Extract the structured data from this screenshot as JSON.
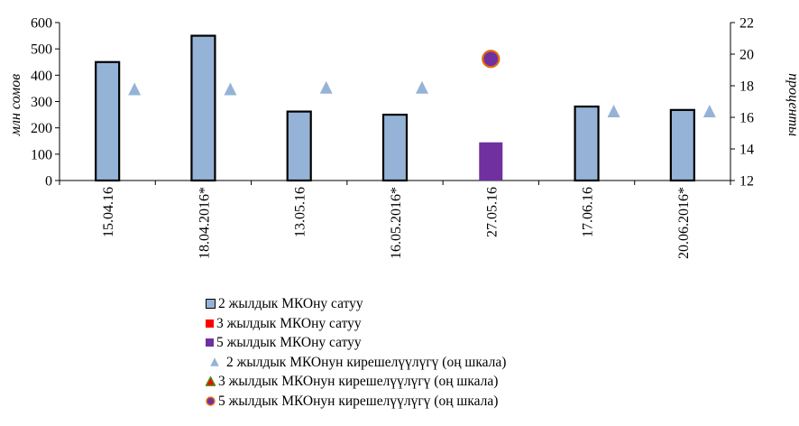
{
  "chart_data": {
    "type": "bar",
    "categories": [
      "15.04.16",
      "18.04.2016*",
      "13.05.16",
      "16.05.2016*",
      "27.05.16",
      "17.06.16",
      "20.06.2016*"
    ],
    "series": [
      {
        "name": "2 жылдык МКОну сатуу",
        "kind": "bar",
        "axis": "left",
        "color": "#95b3d7",
        "values": [
          450,
          550,
          262,
          250,
          null,
          281,
          268
        ]
      },
      {
        "name": "3 жылдык МКОну сатуу",
        "kind": "bar",
        "axis": "left",
        "color": "#ff0000",
        "values": [
          null,
          null,
          null,
          null,
          null,
          null,
          null
        ]
      },
      {
        "name": "5 жылдык МКОну сатуу",
        "kind": "bar",
        "axis": "left",
        "color": "#7030a0",
        "values": [
          null,
          null,
          null,
          null,
          145,
          null,
          null
        ]
      },
      {
        "name": "2 жылдык МКОнун кирешелүүлүгү (оң шкала)",
        "kind": "triangle",
        "axis": "right",
        "color": "#95b3d7",
        "values": [
          17.8,
          17.8,
          17.9,
          17.9,
          null,
          16.4,
          16.4
        ]
      },
      {
        "name": "3 жылдык МКОнун кирешелүүлүгү (оң шкала)",
        "kind": "triangle",
        "axis": "right",
        "color": "#ff0000",
        "values": [
          null,
          null,
          null,
          null,
          null,
          null,
          null
        ]
      },
      {
        "name": "5 жылдык МКОнун кирешелүүлүгү (оң шкала)",
        "kind": "circle",
        "axis": "right",
        "color": "#7030a0",
        "values": [
          null,
          null,
          null,
          null,
          19.7,
          null,
          null
        ]
      }
    ],
    "ylabel": "млн сомов",
    "y2label": "проценты",
    "ylim": [
      0,
      600
    ],
    "yticks": [
      "0",
      "100",
      "200",
      "300",
      "400",
      "500",
      "600"
    ],
    "y2lim": [
      12,
      22
    ],
    "y2ticks": [
      "12",
      "14",
      "16",
      "18",
      "20",
      "22"
    ],
    "legend_position": "bottom",
    "grid": false
  }
}
